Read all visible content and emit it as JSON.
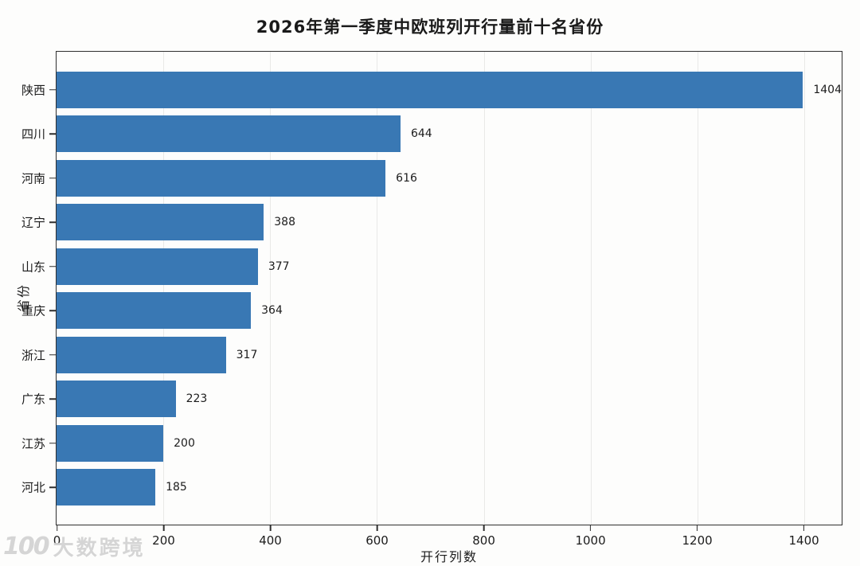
{
  "title": "2026年第一季度中欧班列开行量前十名省份",
  "watermark": {
    "logo": "100",
    "text": "大数跨境"
  },
  "chart_data": {
    "type": "bar",
    "orientation": "horizontal",
    "title": "2026年第一季度中欧班列开行量前十名省份",
    "xlabel": "开行列数",
    "ylabel": "省份",
    "categories": [
      "陕西",
      "四川",
      "河南",
      "辽宁",
      "山东",
      "重庆",
      "浙江",
      "广东",
      "江苏",
      "河北"
    ],
    "values": [
      1404,
      644,
      616,
      388,
      377,
      364,
      317,
      223,
      200,
      185
    ],
    "xlim": [
      0,
      1470
    ],
    "xticks": [
      0,
      200,
      400,
      600,
      800,
      1000,
      1200,
      1400
    ],
    "bar_color": "#3978b4",
    "grid": true,
    "legend": "none"
  }
}
